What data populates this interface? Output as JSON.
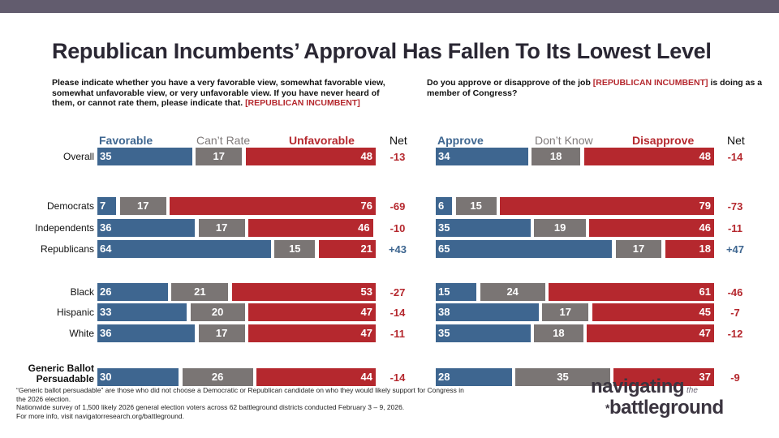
{
  "title": "Republican Incumbents’ Approval Has Fallen To Its Lowest Level",
  "colors": {
    "positive": "#3e6690",
    "neutral": "#7a7574",
    "negative": "#b5282e",
    "band": "#625c6e"
  },
  "chart_data": [
    {
      "type": "bar",
      "stacked": true,
      "question": "Please indicate whether you have a very favorable view, somewhat favorable view, somewhat unfavorable view, or very unfavorable view. If you have never heard of them, or cannot rate them, please indicate that.",
      "question_tag": "[REPUBLICAN INCUMBENT]",
      "series_labels": [
        "Favorable",
        "Can’t Rate",
        "Unfavorable"
      ],
      "net_label": "Net",
      "categories": [
        "Overall",
        "Democrats",
        "Independents",
        "Republicans",
        "Black",
        "Hispanic",
        "White",
        "Generic Ballot Persuadable"
      ],
      "series": [
        {
          "name": "Favorable",
          "values": [
            35,
            7,
            36,
            64,
            26,
            33,
            36,
            30
          ]
        },
        {
          "name": "Can’t Rate",
          "values": [
            17,
            17,
            17,
            15,
            21,
            20,
            17,
            26
          ]
        },
        {
          "name": "Unfavorable",
          "values": [
            48,
            76,
            46,
            21,
            53,
            47,
            47,
            44
          ]
        }
      ],
      "net": [
        "-13",
        "-69",
        "-10",
        "+43",
        "-27",
        "-14",
        "-11",
        "-14"
      ]
    },
    {
      "type": "bar",
      "stacked": true,
      "question_pre": "Do you approve or disapprove of the job",
      "question_tag": "[REPUBLICAN INCUMBENT]",
      "question_post": "is doing as a member of Congress?",
      "series_labels": [
        "Approve",
        "Don’t Know",
        "Disapprove"
      ],
      "net_label": "Net",
      "categories": [
        "Overall",
        "Democrats",
        "Independents",
        "Republicans",
        "Black",
        "Hispanic",
        "White",
        "Generic Ballot Persuadable"
      ],
      "series": [
        {
          "name": "Approve",
          "values": [
            34,
            6,
            35,
            65,
            15,
            38,
            35,
            28
          ]
        },
        {
          "name": "Don’t Know",
          "values": [
            18,
            15,
            19,
            17,
            24,
            17,
            18,
            35
          ]
        },
        {
          "name": "Disapprove",
          "values": [
            48,
            79,
            46,
            18,
            61,
            45,
            47,
            37
          ]
        }
      ],
      "net": [
        "-14",
        "-73",
        "-11",
        "+47",
        "-46",
        "-7",
        "-12",
        "-9"
      ]
    }
  ],
  "footnotes": [
    "“Generic ballot persuadable” are those who did not choose a Democratic or Republican candidate on who they would likely support for Congress in the 2026 election.",
    "Nationwide survey of 1,500 likely 2026 general election voters across 62 battleground districts conducted February 3 – 9, 2026.",
    "For more info, visit navigatorresearch.org/battleground."
  ],
  "logo": {
    "line1": "navigating",
    "the": "the",
    "line2": "battleground"
  }
}
